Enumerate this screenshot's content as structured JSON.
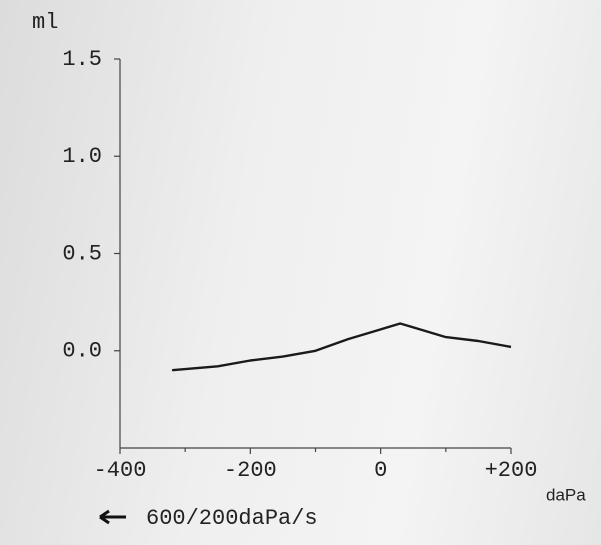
{
  "chart_data": {
    "type": "line",
    "y_label": "ml",
    "x_label": "daPa",
    "annotation": "600/200daPa/s",
    "x": [
      -320,
      -250,
      -200,
      -150,
      -100,
      -50,
      0,
      30,
      50,
      100,
      150,
      200
    ],
    "series": [
      {
        "color": "#1a1a1a",
        "values": [
          -0.1,
          -0.08,
          -0.05,
          -0.03,
          0.0,
          0.06,
          0.11,
          0.14,
          0.12,
          0.07,
          0.05,
          0.02
        ]
      }
    ],
    "xlim": [
      -400,
      200
    ],
    "xticks": [
      -400,
      -200,
      0,
      {
        "value": 200,
        "label": "+200"
      }
    ],
    "xminor_ticks": [
      -300,
      -100,
      100
    ],
    "ylim": [
      -0.5,
      1.5
    ],
    "yticks": [
      1.5,
      {
        "value": 1,
        "label": "1.0"
      },
      0.5,
      {
        "value": 0,
        "label": "0.0"
      }
    ]
  }
}
